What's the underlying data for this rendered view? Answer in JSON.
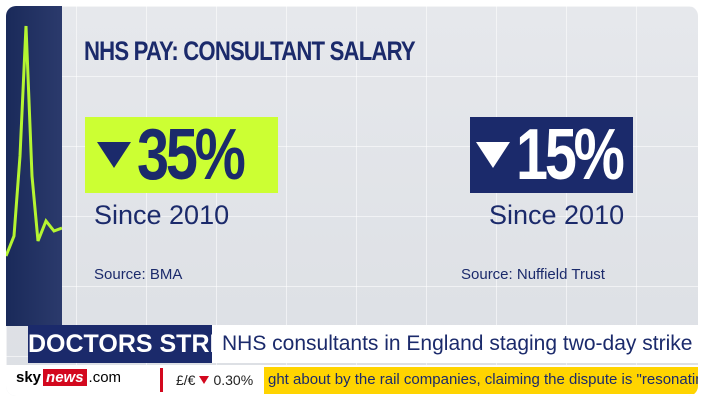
{
  "header": {
    "title": "NHS PAY: CONSULTANT SALARY"
  },
  "stats": [
    {
      "value": "35%",
      "caption": "Since 2010",
      "source": "Source: BMA"
    },
    {
      "value": "15%",
      "caption": "Since 2010",
      "source": "Source: Nuffield Trust"
    }
  ],
  "lower_third": {
    "label": "DOCTORS STRIKE",
    "headline": "NHS consultants in England staging two-day strike"
  },
  "ticker": {
    "brand": [
      "sky",
      "news",
      ".com"
    ],
    "currency": "£/€",
    "change": "0.30%",
    "text": "ght about by the rail companies, claiming the dispute is \"resonating\" with"
  }
}
